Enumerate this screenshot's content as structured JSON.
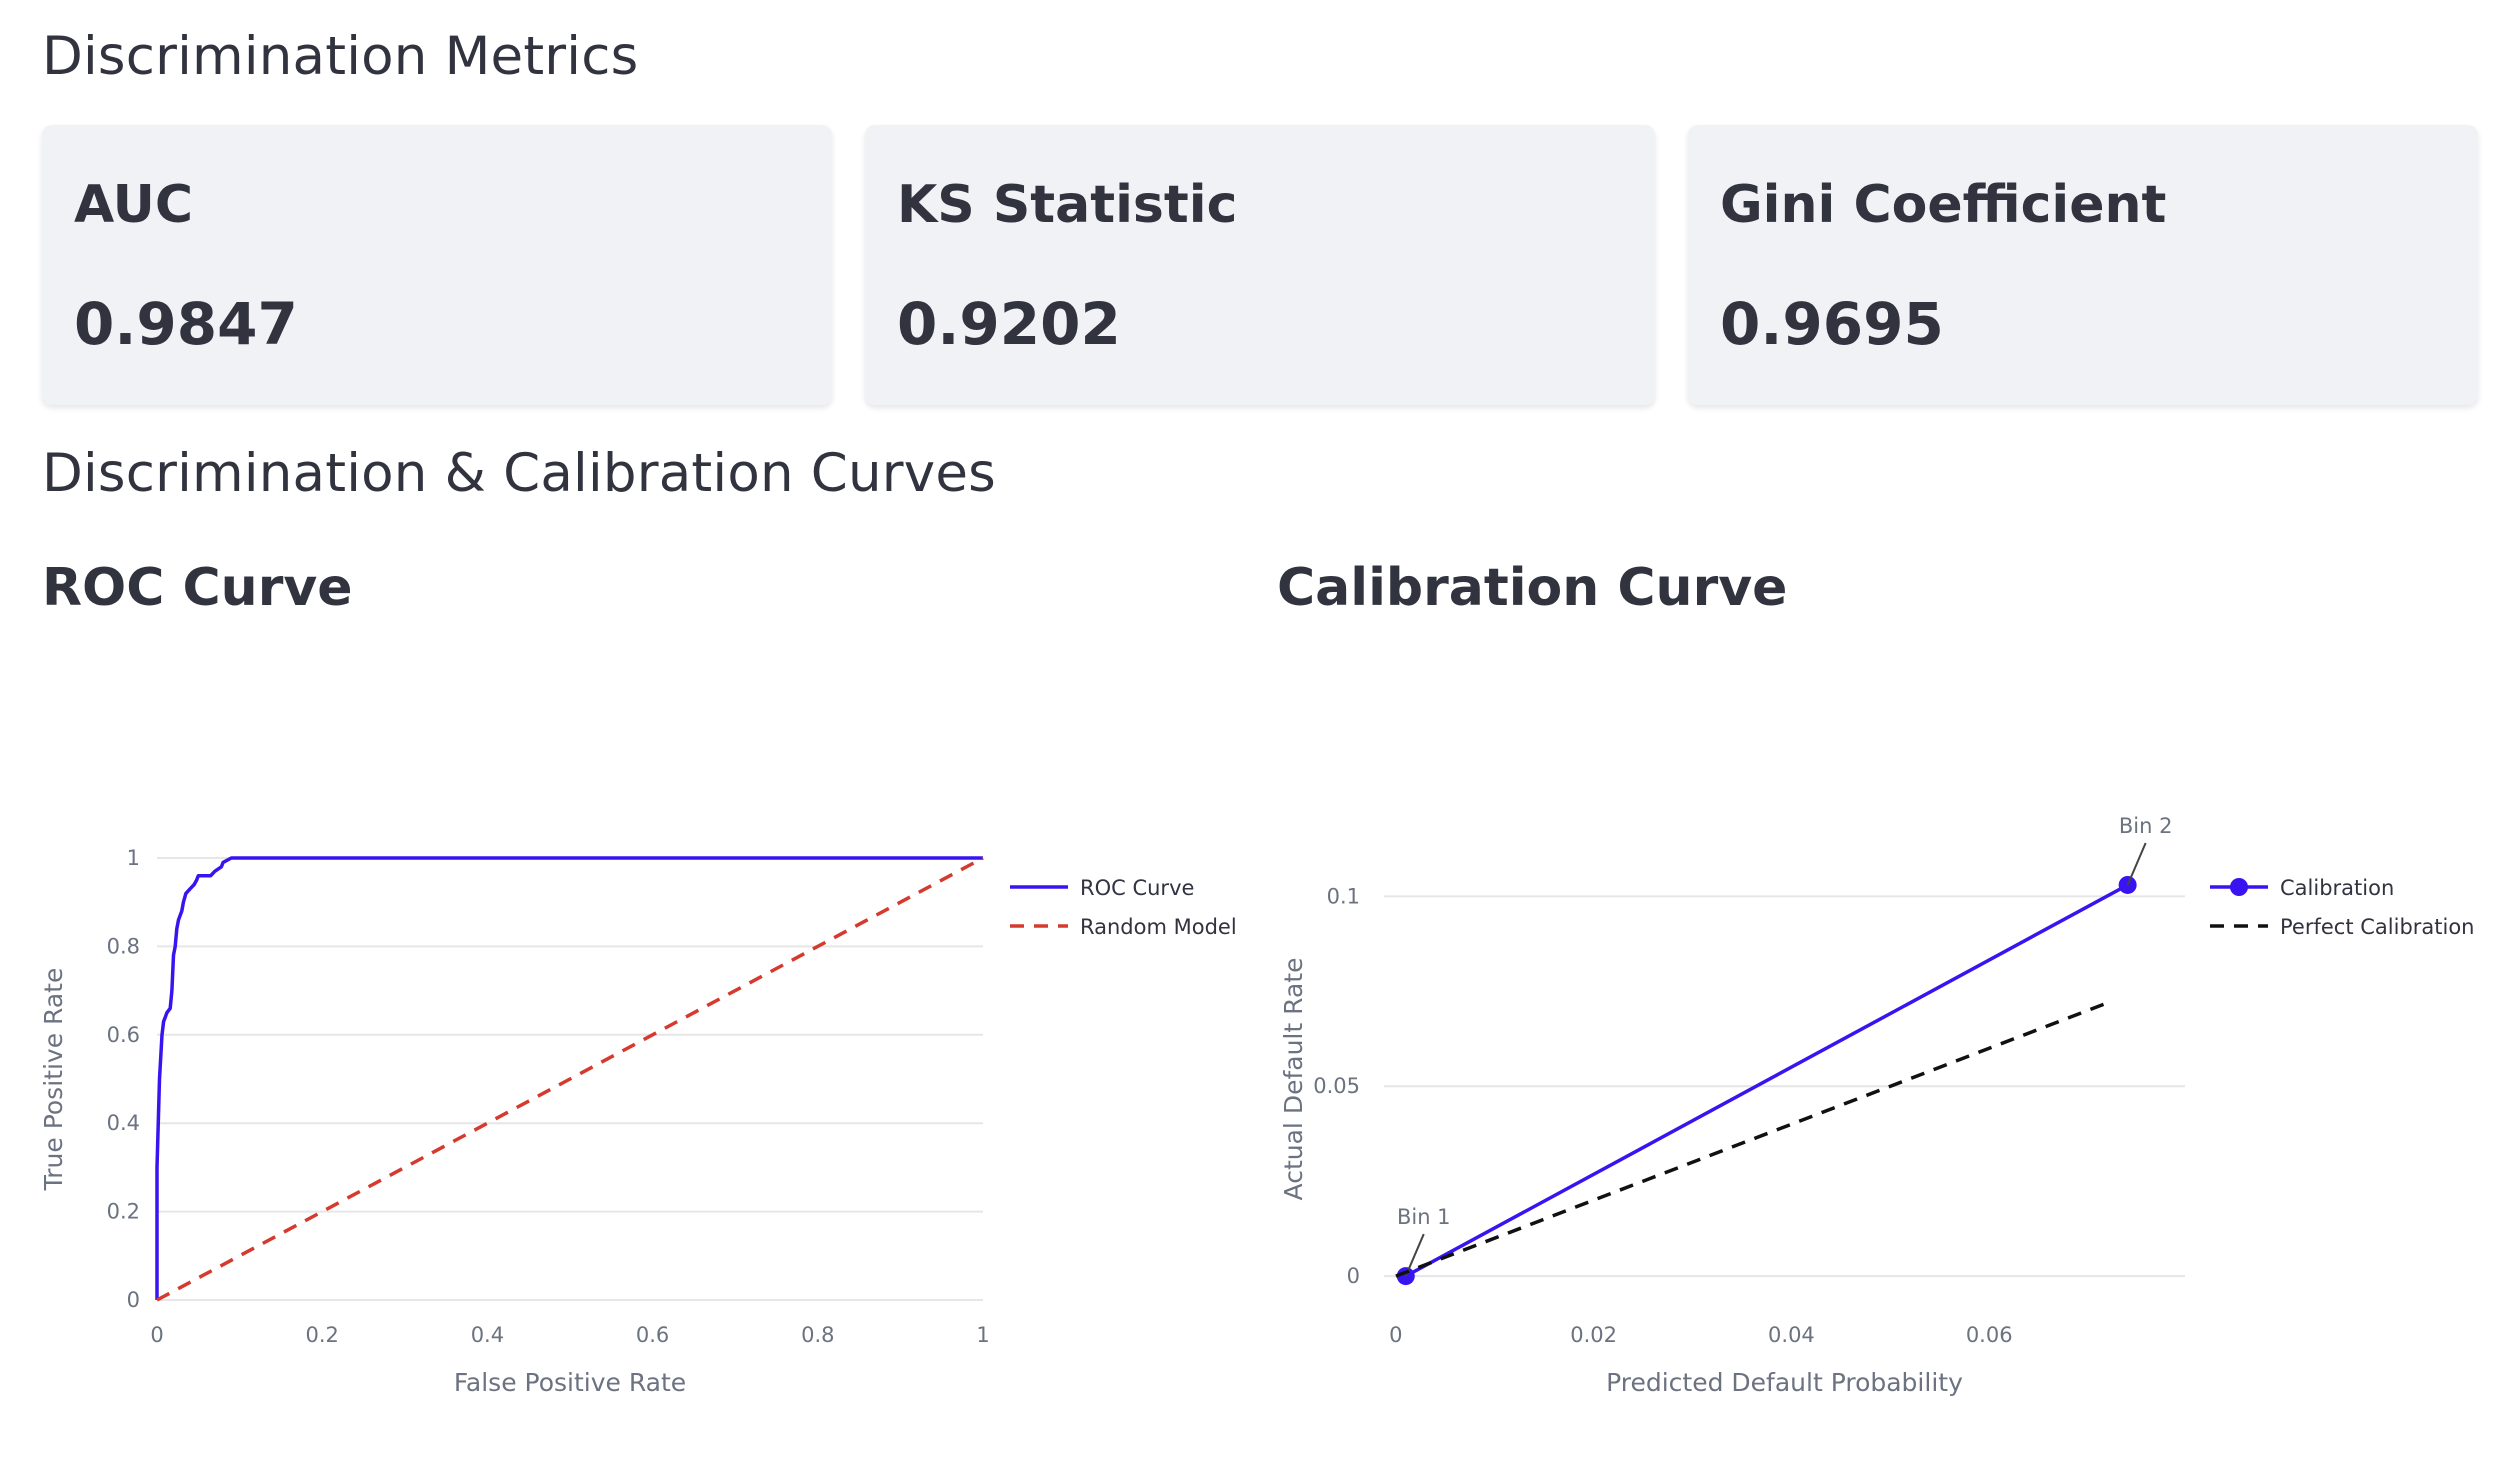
{
  "sections": {
    "metrics_title": "Discrimination Metrics",
    "curves_title": "Discrimination & Calibration Curves"
  },
  "metrics": [
    {
      "label": "AUC",
      "value": "0.9847"
    },
    {
      "label": "KS Statistic",
      "value": "0.9202"
    },
    {
      "label": "Gini Coefficient",
      "value": "0.9695"
    }
  ],
  "colors": {
    "roc": "#3a14f0",
    "random": "#d63a2f",
    "calibration": "#3a14f0",
    "perfect": "#111111",
    "grid": "#e6e6e6",
    "axis_text": "#6b7280"
  },
  "chart_data": [
    {
      "type": "line",
      "title": "ROC Curve",
      "xlabel": "False Positive Rate",
      "ylabel": "True Positive Rate",
      "xlim": [
        0,
        1
      ],
      "ylim": [
        0,
        1
      ],
      "xticks": [
        "0",
        "0.2",
        "0.4",
        "0.6",
        "0.8",
        "1"
      ],
      "yticks": [
        "0",
        "0.2",
        "0.4",
        "0.6",
        "0.8",
        "1"
      ],
      "grid": true,
      "legend_position": "right",
      "series": [
        {
          "name": "ROC Curve",
          "style": "solid",
          "x": [
            0,
            0,
            0.003,
            0.006,
            0.008,
            0.01,
            0.012,
            0.016,
            0.018,
            0.02,
            0.022,
            0.024,
            0.026,
            0.03,
            0.032,
            0.035,
            0.04,
            0.045,
            0.048,
            0.05,
            0.065,
            0.07,
            0.078,
            0.08,
            0.09,
            0.12,
            0.2,
            0.4,
            0.6,
            0.8,
            1.0
          ],
          "y": [
            0,
            0.3,
            0.5,
            0.6,
            0.63,
            0.64,
            0.65,
            0.66,
            0.7,
            0.78,
            0.8,
            0.84,
            0.86,
            0.88,
            0.9,
            0.92,
            0.93,
            0.94,
            0.95,
            0.96,
            0.96,
            0.97,
            0.98,
            0.99,
            1.0,
            1.0,
            1.0,
            1.0,
            1.0,
            1.0,
            1.0
          ]
        },
        {
          "name": "Random Model",
          "style": "dash",
          "x": [
            0,
            1
          ],
          "y": [
            0,
            1
          ]
        }
      ]
    },
    {
      "type": "line",
      "title": "Calibration Curve",
      "xlabel": "Predicted Default Probability",
      "ylabel": "Actual Default Rate",
      "xlim": [
        -0.0012,
        0.0798
      ],
      "ylim": [
        -0.0063,
        0.1101
      ],
      "xticks": [
        "0",
        "0.02",
        "0.04",
        "0.06"
      ],
      "yticks": [
        "0",
        "0.05",
        "0.1"
      ],
      "grid": true,
      "legend_position": "right",
      "series": [
        {
          "name": "Calibration",
          "style": "solid-markers",
          "x": [
            0.001,
            0.074
          ],
          "y": [
            0.0,
            0.103
          ],
          "point_labels": [
            "Bin 1",
            "Bin 2"
          ]
        },
        {
          "name": "Perfect Calibration",
          "style": "dash",
          "x": [
            0,
            0.072
          ],
          "y": [
            0,
            0.072
          ]
        }
      ]
    }
  ]
}
